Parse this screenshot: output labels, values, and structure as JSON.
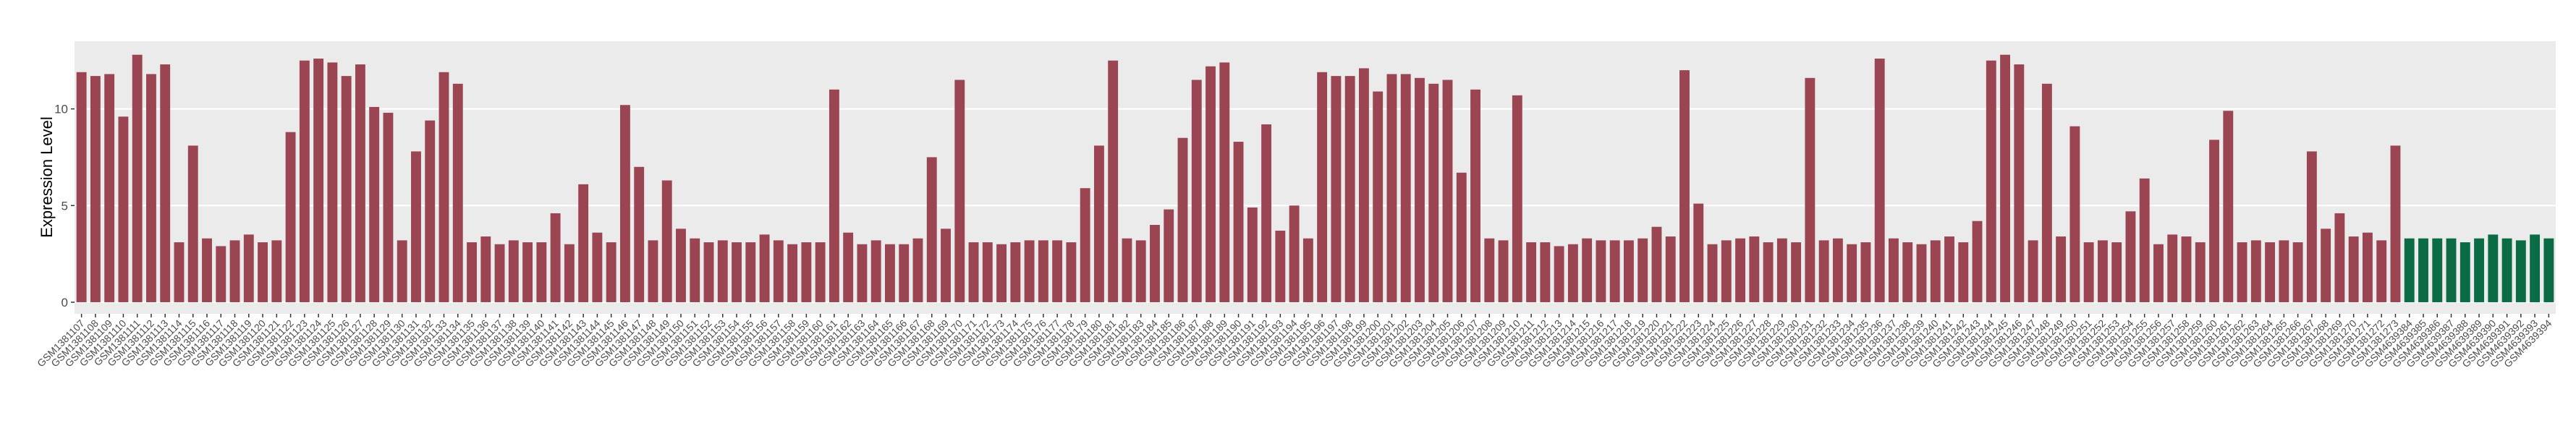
{
  "chart_data": {
    "type": "bar",
    "y_label": "Expression Level",
    "categories": [
      "GSM1381107",
      "GSM1381108",
      "GSM1381109",
      "GSM1381110",
      "GSM1381111",
      "GSM1381112",
      "GSM1381113",
      "GSM1381114",
      "GSM1381115",
      "GSM1381116",
      "GSM1381117",
      "GSM1381118",
      "GSM1381119",
      "GSM1381120",
      "GSM1381121",
      "GSM1381122",
      "GSM1381123",
      "GSM1381124",
      "GSM1381125",
      "GSM1381126",
      "GSM1381127",
      "GSM1381128",
      "GSM1381129",
      "GSM1381130",
      "GSM1381131",
      "GSM1381132",
      "GSM1381133",
      "GSM1381134",
      "GSM1381135",
      "GSM1381136",
      "GSM1381137",
      "GSM1381138",
      "GSM1381139",
      "GSM1381140",
      "GSM1381141",
      "GSM1381142",
      "GSM1381143",
      "GSM1381144",
      "GSM1381145",
      "GSM1381146",
      "GSM1381147",
      "GSM1381148",
      "GSM1381149",
      "GSM1381150",
      "GSM1381151",
      "GSM1381152",
      "GSM1381153",
      "GSM1381154",
      "GSM1381155",
      "GSM1381156",
      "GSM1381157",
      "GSM1381158",
      "GSM1381159",
      "GSM1381160",
      "GSM1381161",
      "GSM1381162",
      "GSM1381163",
      "GSM1381164",
      "GSM1381165",
      "GSM1381166",
      "GSM1381167",
      "GSM1381168",
      "GSM1381169",
      "GSM1381170",
      "GSM1381171",
      "GSM1381172",
      "GSM1381173",
      "GSM1381174",
      "GSM1381175",
      "GSM1381176",
      "GSM1381177",
      "GSM1381178",
      "GSM1381179",
      "GSM1381180",
      "GSM1381181",
      "GSM1381182",
      "GSM1381183",
      "GSM1381184",
      "GSM1381185",
      "GSM1381186",
      "GSM1381187",
      "GSM1381188",
      "GSM1381189",
      "GSM1381190",
      "GSM1381191",
      "GSM1381192",
      "GSM1381193",
      "GSM1381194",
      "GSM1381195",
      "GSM1381196",
      "GSM1381197",
      "GSM1381198",
      "GSM1381199",
      "GSM1381200",
      "GSM1381201",
      "GSM1381202",
      "GSM1381203",
      "GSM1381204",
      "GSM1381205",
      "GSM1381206",
      "GSM1381207",
      "GSM1381208",
      "GSM1381209",
      "GSM1381210",
      "GSM1381211",
      "GSM1381212",
      "GSM1381213",
      "GSM1381214",
      "GSM1381215",
      "GSM1381216",
      "GSM1381217",
      "GSM1381218",
      "GSM1381219",
      "GSM1381220",
      "GSM1381221",
      "GSM1381222",
      "GSM1381223",
      "GSM1381224",
      "GSM1381225",
      "GSM1381226",
      "GSM1381227",
      "GSM1381228",
      "GSM1381229",
      "GSM1381230",
      "GSM1381231",
      "GSM1381232",
      "GSM1381233",
      "GSM1381234",
      "GSM1381235",
      "GSM1381236",
      "GSM1381237",
      "GSM1381238",
      "GSM1381239",
      "GSM1381240",
      "GSM1381241",
      "GSM1381242",
      "GSM1381243",
      "GSM1381244",
      "GSM1381245",
      "GSM1381246",
      "GSM1381247",
      "GSM1381248",
      "GSM1381249",
      "GSM1381250",
      "GSM1381251",
      "GSM1381252",
      "GSM1381253",
      "GSM1381254",
      "GSM1381255",
      "GSM1381256",
      "GSM1381257",
      "GSM1381258",
      "GSM1381259",
      "GSM1381260",
      "GSM1381261",
      "GSM1381262",
      "GSM1381263",
      "GSM1381264",
      "GSM1381265",
      "GSM1381266",
      "GSM1381267",
      "GSM1381268",
      "GSM1381269",
      "GSM1381270",
      "GSM1381271",
      "GSM1381272",
      "GSM1381273",
      "GSM4639384",
      "GSM4639385",
      "GSM4639386",
      "GSM4639387",
      "GSM4639388",
      "GSM4639389",
      "GSM4639390",
      "GSM4639391",
      "GSM4639392",
      "GSM4639393",
      "GSM4639394"
    ],
    "series": [
      {
        "color": "#9b4452",
        "values": [
          11.9,
          11.7,
          11.8,
          9.6,
          12.8,
          11.8,
          12.3,
          3.1,
          8.1,
          3.3,
          2.9,
          3.2,
          3.5,
          3.1,
          3.2,
          8.8,
          12.5,
          12.6,
          12.4,
          11.7,
          12.3,
          10.1,
          9.8,
          3.2,
          7.8,
          9.4,
          11.9,
          11.3,
          3.1,
          3.4,
          3.0,
          3.2,
          3.1,
          3.1,
          4.6,
          3.0,
          6.1,
          3.6,
          3.1,
          10.2,
          7.0,
          3.2,
          6.3,
          3.8,
          3.3,
          3.1,
          3.2,
          3.1,
          3.1,
          3.5,
          3.2,
          3.0,
          3.1,
          3.1,
          11.0,
          3.6,
          3.0,
          3.2,
          3.0,
          3.0,
          3.3,
          7.5,
          3.8,
          11.5,
          3.1,
          3.1,
          3.0,
          3.1,
          3.2,
          3.2,
          3.2,
          3.1,
          5.9,
          8.1,
          12.5,
          3.3,
          3.2,
          4.0,
          4.8,
          8.5,
          11.5,
          12.2,
          12.4,
          8.3,
          4.9,
          9.2,
          3.7,
          5.0,
          3.3,
          11.9,
          11.7,
          11.7,
          12.1,
          10.9,
          11.8,
          11.8,
          11.6,
          11.3,
          11.5,
          6.7,
          11.0,
          3.3,
          3.2,
          10.7,
          3.1,
          3.1,
          2.9,
          3.0,
          3.3,
          3.2,
          3.2,
          3.2,
          3.3,
          3.9,
          3.4,
          12.0,
          5.1,
          3.0,
          3.2,
          3.3,
          3.4,
          3.1,
          3.3,
          3.1,
          11.6,
          3.2,
          3.3,
          3.0,
          3.1,
          12.6,
          3.3,
          3.1,
          3.0,
          3.2,
          3.4,
          3.1,
          4.2,
          12.5,
          12.8,
          12.3,
          3.2,
          11.3,
          3.4,
          9.1,
          3.1,
          3.2,
          3.1,
          4.7,
          6.4,
          3.0,
          3.5,
          3.4,
          3.1,
          8.4,
          9.9,
          3.1,
          3.2,
          3.1,
          3.2,
          3.1,
          7.8,
          3.8,
          4.6,
          3.4,
          3.6,
          3.2,
          8.1,
          null,
          null,
          null,
          null,
          null,
          null,
          null,
          null,
          null,
          null,
          null
        ]
      },
      {
        "color": "#0b6b45",
        "values": [
          null,
          null,
          null,
          null,
          null,
          null,
          null,
          null,
          null,
          null,
          null,
          null,
          null,
          null,
          null,
          null,
          null,
          null,
          null,
          null,
          null,
          null,
          null,
          null,
          null,
          null,
          null,
          null,
          null,
          null,
          null,
          null,
          null,
          null,
          null,
          null,
          null,
          null,
          null,
          null,
          null,
          null,
          null,
          null,
          null,
          null,
          null,
          null,
          null,
          null,
          null,
          null,
          null,
          null,
          null,
          null,
          null,
          null,
          null,
          null,
          null,
          null,
          null,
          null,
          null,
          null,
          null,
          null,
          null,
          null,
          null,
          null,
          null,
          null,
          null,
          null,
          null,
          null,
          null,
          null,
          null,
          null,
          null,
          null,
          null,
          null,
          null,
          null,
          null,
          null,
          null,
          null,
          null,
          null,
          null,
          null,
          null,
          null,
          null,
          null,
          null,
          null,
          null,
          null,
          null,
          null,
          null,
          null,
          null,
          null,
          null,
          null,
          null,
          null,
          null,
          null,
          null,
          null,
          null,
          null,
          null,
          null,
          null,
          null,
          null,
          null,
          null,
          null,
          null,
          null,
          null,
          null,
          null,
          null,
          null,
          null,
          null,
          null,
          null,
          null,
          null,
          null,
          null,
          null,
          null,
          null,
          null,
          null,
          null,
          null,
          null,
          null,
          null,
          null,
          null,
          null,
          null,
          null,
          null,
          null,
          null,
          null,
          null,
          null,
          null,
          null,
          null,
          3.3,
          3.3,
          3.3,
          3.3,
          3.1,
          3.3,
          3.5,
          3.3,
          3.2,
          3.5,
          3.3
        ]
      }
    ],
    "ylim": [
      -0.6,
      13.5
    ],
    "yticks": [
      0,
      5,
      10
    ],
    "grid": true,
    "panel_color": "#ebebeb"
  }
}
